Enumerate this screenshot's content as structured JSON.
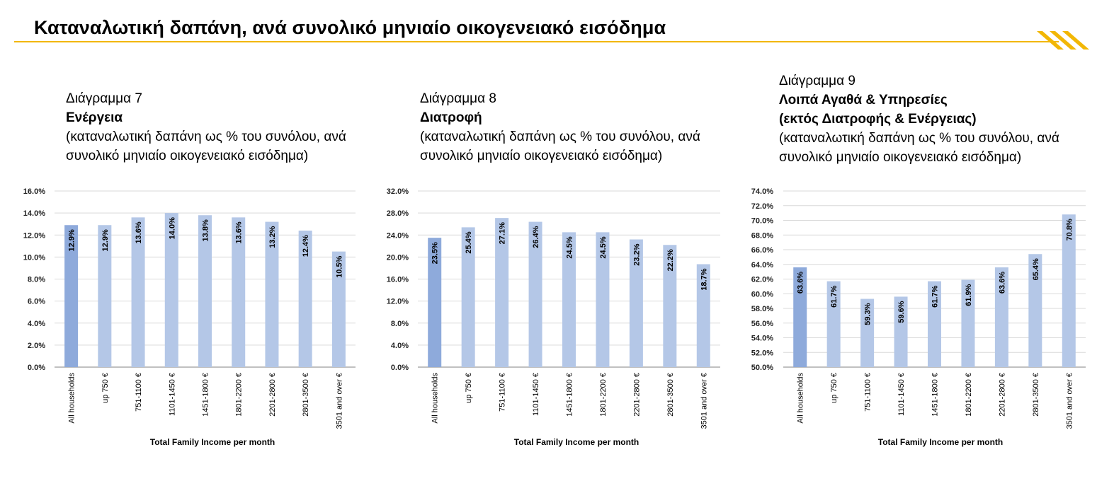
{
  "page": {
    "title": "Καταναλωτική δαπάνη, ανά συνολικό μηνιαίο οικογενειακό εισόδημα",
    "accent_color": "#f2b705",
    "logo_icon": "yellow-diagonal-stripes"
  },
  "panels": [
    {
      "caption": {
        "number": "Διάγραμμα 7",
        "name": "Ενέργεια",
        "name2": "",
        "desc1": "(καταναλωτική δαπάνη ως % του συνόλου, ανά",
        "desc2": "συνολικό μηνιαίο οικογενειακό εισόδημα)"
      }
    },
    {
      "caption": {
        "number": "Διάγραμμα 8",
        "name": "Διατροφή",
        "name2": "",
        "desc1": "(καταναλωτική δαπάνη ως % του συνόλου, ανά",
        "desc2": "συνολικό μηνιαίο οικογενειακό εισόδημα)"
      }
    },
    {
      "caption": {
        "number": "Διάγραμμα 9",
        "name": "Λοιπά Αγαθά & Υπηρεσίες",
        "name2": "(εκτός  Διατροφής & Ενέργειας)",
        "desc1": "(καταναλωτική δαπάνη ως % του συνόλου, ανά",
        "desc2": "συνολικό μηνιαίο οικογενειακό εισόδημα)"
      }
    }
  ],
  "chart_data": [
    {
      "type": "bar",
      "title": "",
      "xlabel": "Total Family Income per month",
      "ylabel": "",
      "categories": [
        "All households",
        "up 750 €",
        "751-1100 €",
        "1101-1450 €",
        "1451-1800 €",
        "1801-2200 €",
        "2201-2800 €",
        "2801-3500 €",
        "3501 and over €"
      ],
      "values": [
        12.9,
        12.9,
        13.6,
        14.0,
        13.8,
        13.6,
        13.2,
        12.4,
        10.5
      ],
      "value_labels": [
        "12.9%",
        "12.9%",
        "13.6%",
        "14.0%",
        "13.8%",
        "13.6%",
        "13.2%",
        "12.4%",
        "10.5%"
      ],
      "ylim": [
        0,
        16
      ],
      "yticks": [
        "0.0%",
        "2.0%",
        "4.0%",
        "6.0%",
        "8.0%",
        "10.0%",
        "12.0%",
        "14.0%",
        "16.0%"
      ],
      "grid": true,
      "legend": "none",
      "colors": {
        "highlight": "#8eaadb",
        "bar": "#b4c7e7"
      }
    },
    {
      "type": "bar",
      "title": "",
      "xlabel": "Total Family Income per month",
      "ylabel": "",
      "categories": [
        "All households",
        "up 750 €",
        "751-1100 €",
        "1101-1450 €",
        "1451-1800 €",
        "1801-2200 €",
        "2201-2800 €",
        "2801-3500 €",
        "3501 and over €"
      ],
      "values": [
        23.5,
        25.4,
        27.1,
        26.4,
        24.5,
        24.5,
        23.2,
        22.2,
        18.7
      ],
      "value_labels": [
        "23.5%",
        "25.4%",
        "27.1%",
        "26.4%",
        "24.5%",
        "24.5%",
        "23.2%",
        "22.2%",
        "18.7%"
      ],
      "ylim": [
        0,
        32
      ],
      "yticks": [
        "0.0%",
        "4.0%",
        "8.0%",
        "12.0%",
        "16.0%",
        "20.0%",
        "24.0%",
        "28.0%",
        "32.0%"
      ],
      "grid": true,
      "legend": "none",
      "colors": {
        "highlight": "#8eaadb",
        "bar": "#b4c7e7"
      }
    },
    {
      "type": "bar",
      "title": "",
      "xlabel": "Total Family Income per month",
      "ylabel": "",
      "categories": [
        "All households",
        "up 750 €",
        "751-1100 €",
        "1101-1450 €",
        "1451-1800 €",
        "1801-2200 €",
        "2201-2800 €",
        "2801-3500 €",
        "3501 and over €"
      ],
      "values": [
        63.6,
        61.7,
        59.3,
        59.6,
        61.7,
        61.9,
        63.6,
        65.4,
        70.8
      ],
      "value_labels": [
        "63.6%",
        "61.7%",
        "59.3%",
        "59.6%",
        "61.7%",
        "61.9%",
        "63.6%",
        "65.4%",
        "70.8%"
      ],
      "ylim": [
        50,
        74
      ],
      "yticks": [
        "50.0%",
        "52.0%",
        "54.0%",
        "56.0%",
        "58.0%",
        "60.0%",
        "62.0%",
        "64.0%",
        "66.0%",
        "68.0%",
        "70.0%",
        "72.0%",
        "74.0%"
      ],
      "grid": true,
      "legend": "none",
      "colors": {
        "highlight": "#8eaadb",
        "bar": "#b4c7e7"
      }
    }
  ]
}
